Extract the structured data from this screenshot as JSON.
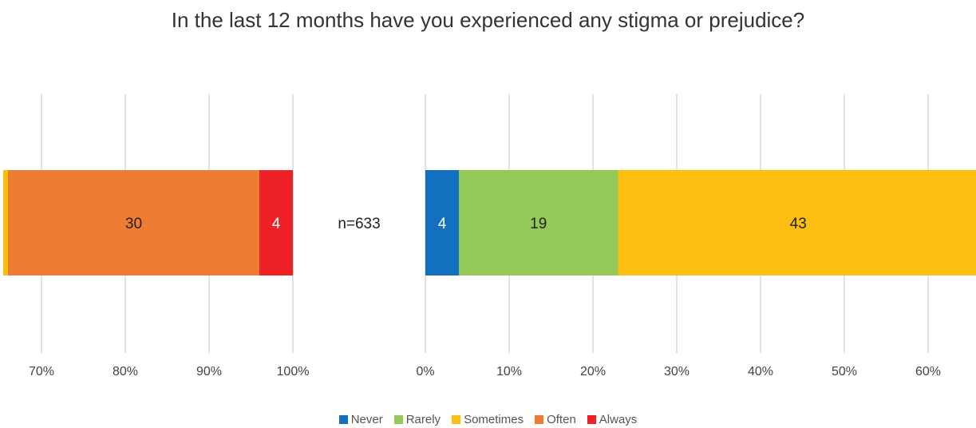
{
  "chart_data": {
    "type": "bar",
    "orientation": "horizontal",
    "layout": "diverging",
    "title": "In the last 12 months have you experienced any stigma or prejudice?",
    "sample_label": "n=633",
    "categories": [
      "n=633"
    ],
    "series": [
      {
        "name": "Never",
        "color": "#1270be",
        "values": [
          4
        ],
        "side": "right"
      },
      {
        "name": "Rarely",
        "color": "#94c958",
        "values": [
          19
        ],
        "side": "right"
      },
      {
        "name": "Sometimes",
        "color": "#fcbf11",
        "values": [
          43
        ],
        "side": "right"
      },
      {
        "name": "Often",
        "color": "#ef7d31",
        "values": [
          30
        ],
        "side": "left"
      },
      {
        "name": "Always",
        "color": "#ee2226",
        "values": [
          4
        ],
        "side": "left"
      }
    ],
    "left_axis": {
      "ticks": [
        "70%",
        "80%",
        "90%",
        "100%"
      ]
    },
    "right_axis": {
      "ticks": [
        "0%",
        "10%",
        "20%",
        "30%",
        "40%",
        "50%",
        "60%"
      ]
    },
    "grid": true,
    "legend_position": "bottom"
  }
}
